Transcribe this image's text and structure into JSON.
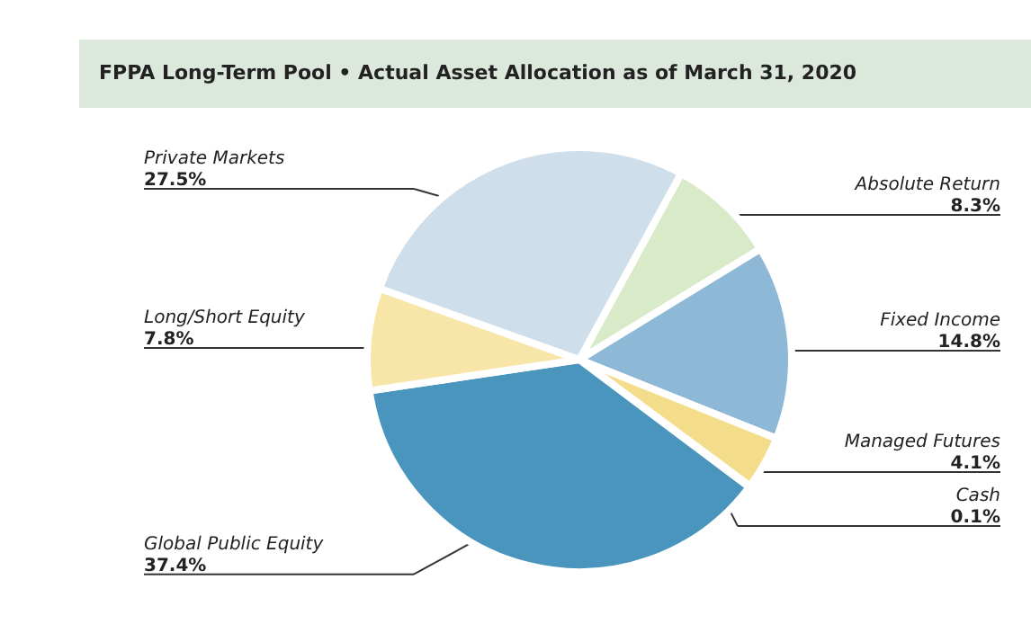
{
  "chart_data": {
    "type": "pie",
    "title": "FPPA Long-Term Pool • Actual Asset Allocation as of March 31, 2020",
    "categories": [
      "Absolute Return",
      "Fixed Income",
      "Managed Futures",
      "Cash",
      "Global Public Equity",
      "Long/Short Equity",
      "Private Markets"
    ],
    "values": [
      8.3,
      14.8,
      4.1,
      0.1,
      37.4,
      7.8,
      27.5
    ],
    "colors": [
      "#d9eac8",
      "#8db8d6",
      "#f3dc8a",
      "#7cc24a",
      "#4a95bd",
      "#f8e6a8",
      "#cfdeeb"
    ],
    "value_labels": [
      "8.3%",
      "14.8%",
      "4.1%",
      "0.1%",
      "37.4%",
      "7.8%",
      "27.5%"
    ]
  }
}
